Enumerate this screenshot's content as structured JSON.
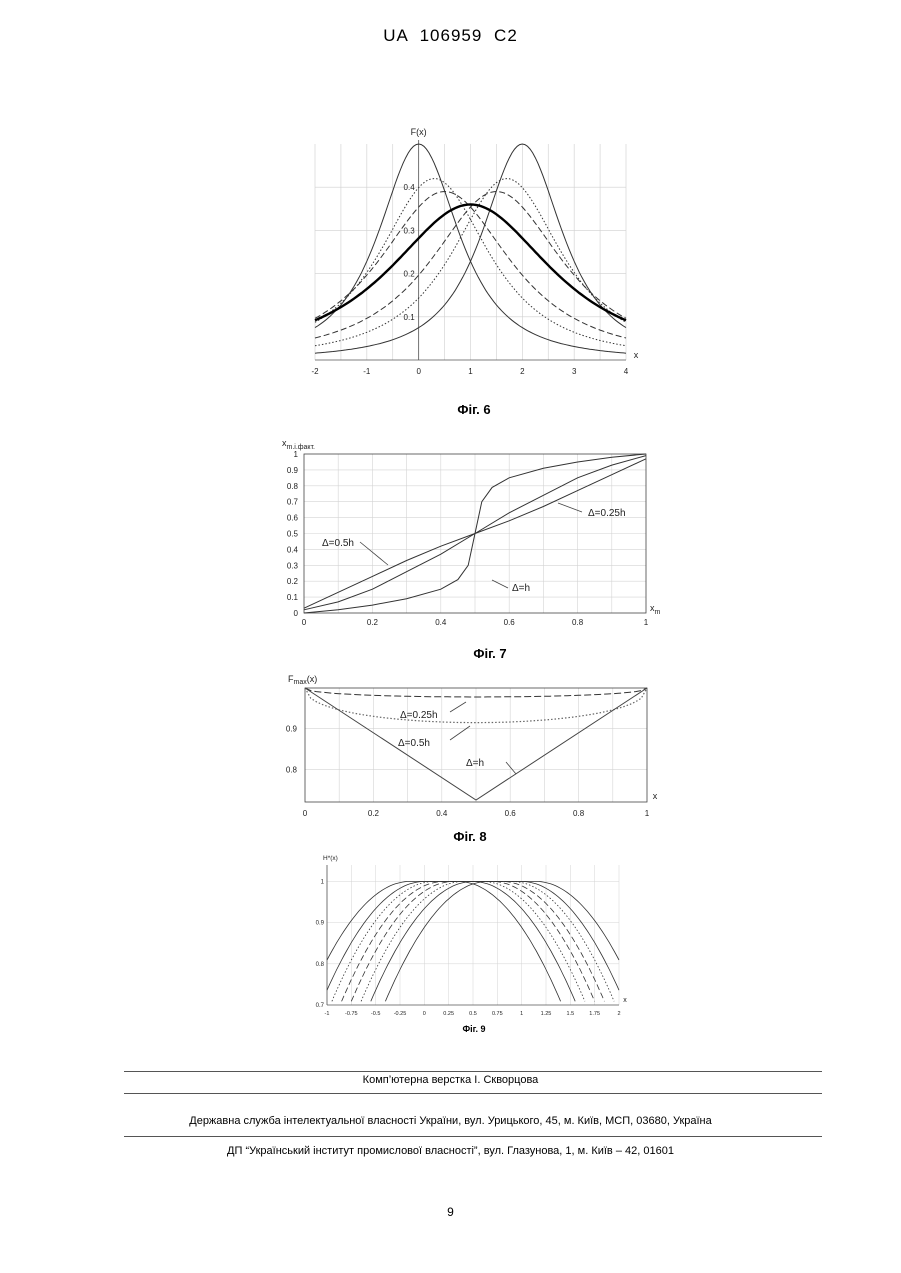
{
  "header": {
    "text": "UA   106959   C2"
  },
  "figures": [
    {
      "caption": "Фіг. 6"
    },
    {
      "caption": "Фіг. 7"
    },
    {
      "caption": "Фіг. 8"
    },
    {
      "caption": "Фіг. 9"
    }
  ],
  "chart_data": [
    {
      "type": "line",
      "ylabel": "F(x)",
      "xlabel": "x",
      "xlim": [
        -2,
        4
      ],
      "ylim": [
        0,
        0.5
      ],
      "x_ticks": [
        "-2",
        "-1",
        "0",
        "1",
        "2",
        "3",
        "4"
      ],
      "y_ticks": [
        "0.1",
        "0.2",
        "0.3",
        "0.4"
      ],
      "grid": true,
      "series": [
        {
          "style": "solid",
          "center": 0,
          "peak": 0.5,
          "width": 1.1
        },
        {
          "style": "solid",
          "center": 2,
          "peak": 0.5,
          "width": 1.1
        },
        {
          "style": "dotted",
          "center": 0.3,
          "peak": 0.42,
          "width": 1.5
        },
        {
          "style": "dotted",
          "center": 1.7,
          "peak": 0.42,
          "width": 1.5
        },
        {
          "style": "dashed",
          "center": 0.5,
          "peak": 0.39,
          "width": 1.8
        },
        {
          "style": "dashed",
          "center": 1.5,
          "peak": 0.39,
          "width": 1.8
        },
        {
          "style": "bold",
          "center": 1,
          "peak": 0.36,
          "width": 2.2
        }
      ]
    },
    {
      "type": "line",
      "ylabel": "x_m.i.факт.",
      "xlabel": "x_m",
      "xlim": [
        0,
        1
      ],
      "ylim": [
        0,
        1
      ],
      "x_ticks": [
        "0",
        "0.2",
        "0.4",
        "0.6",
        "0.8",
        "1"
      ],
      "y_ticks": [
        "0",
        "0.1",
        "0.2",
        "0.3",
        "0.4",
        "0.5",
        "0.6",
        "0.7",
        "0.8",
        "0.9",
        "1"
      ],
      "annotations": [
        "Δ=0.25h",
        "Δ=0.5h",
        "Δ=h"
      ],
      "series": [
        {
          "name": "Δ=0.25h",
          "x": [
            0,
            0.1,
            0.2,
            0.3,
            0.4,
            0.5,
            0.6,
            0.7,
            0.8,
            0.9,
            1
          ],
          "values": [
            0.03,
            0.13,
            0.23,
            0.33,
            0.42,
            0.5,
            0.58,
            0.67,
            0.77,
            0.87,
            0.97
          ]
        },
        {
          "name": "Δ=0.5h",
          "x": [
            0,
            0.1,
            0.2,
            0.3,
            0.4,
            0.5,
            0.6,
            0.7,
            0.8,
            0.9,
            1
          ],
          "values": [
            0.02,
            0.07,
            0.15,
            0.26,
            0.37,
            0.5,
            0.63,
            0.74,
            0.85,
            0.93,
            0.99
          ]
        },
        {
          "name": "Δ=h",
          "x": [
            0,
            0.1,
            0.2,
            0.3,
            0.4,
            0.45,
            0.48,
            0.5,
            0.52,
            0.55,
            0.6,
            0.7,
            0.8,
            0.9,
            1
          ],
          "values": [
            0,
            0.02,
            0.05,
            0.09,
            0.15,
            0.21,
            0.3,
            0.5,
            0.7,
            0.79,
            0.85,
            0.91,
            0.95,
            0.98,
            1
          ]
        }
      ]
    },
    {
      "type": "line",
      "ylabel": "F_max(x)",
      "xlabel": "x",
      "xlim": [
        0,
        1
      ],
      "ylim": [
        0.72,
        1.0
      ],
      "x_ticks": [
        "0",
        "0.2",
        "0.4",
        "0.6",
        "0.8",
        "1"
      ],
      "y_ticks": [
        "0.8",
        "0.9"
      ],
      "annotations": [
        "Δ=0.25h",
        "Δ=0.5h",
        "Δ=h"
      ],
      "series": [
        {
          "name": "Δ=0.25h",
          "x": [
            0,
            0.25,
            0.5,
            0.75,
            1
          ],
          "values": [
            1.0,
            0.984,
            0.978,
            0.984,
            1.0
          ]
        },
        {
          "name": "Δ=0.5h",
          "x": [
            0,
            0.25,
            0.5,
            0.75,
            1
          ],
          "values": [
            1.0,
            0.935,
            0.915,
            0.935,
            1.0
          ]
        },
        {
          "name": "Δ=h",
          "x": [
            0,
            0.5,
            1
          ],
          "values": [
            1.0,
            0.725,
            1.0
          ]
        }
      ]
    },
    {
      "type": "line",
      "ylabel": "H*(x)",
      "xlabel": "x",
      "xlim": [
        -1,
        2
      ],
      "ylim": [
        0.7,
        1.04
      ],
      "x_ticks": [
        "-1",
        "-0.75",
        "-0.5",
        "-0.25",
        "0",
        "0.25",
        "0.5",
        "0.75",
        "1",
        "1.25",
        "1.5",
        "1.75",
        "2"
      ],
      "y_ticks": [
        "0.7",
        "0.8",
        "0.9",
        "1"
      ],
      "series": [
        {
          "style": "solid",
          "center": 0.25
        },
        {
          "style": "solid",
          "center": 0.75
        },
        {
          "style": "dotted",
          "center": 0.35
        },
        {
          "style": "dotted",
          "center": 0.65
        },
        {
          "style": "dashed",
          "center": 0.45
        },
        {
          "style": "dashed",
          "center": 0.55
        },
        {
          "style": "solid",
          "center": 0.1
        },
        {
          "style": "solid",
          "center": 0.9
        }
      ]
    }
  ],
  "footer": {
    "layout": "Комп’ютерна верстка І. Скворцова",
    "service": "Державна служба інтелектуальної власності України, вул. Урицького, 45, м. Київ, МСП, 03680, Україна",
    "institute": "ДП “Український інститут промислової власності”, вул. Глазунова, 1, м. Київ – 42, 01601"
  },
  "page_number": "9"
}
